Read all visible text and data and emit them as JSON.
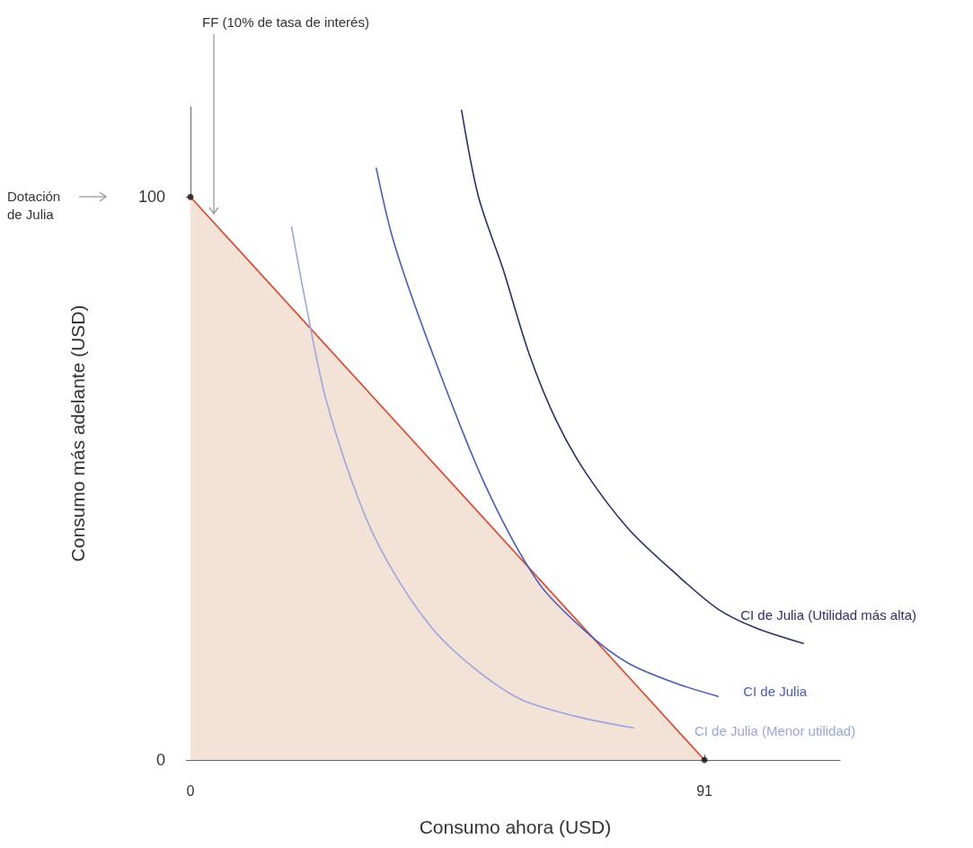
{
  "chart_data": {
    "type": "line",
    "xlabel": "Consumo ahora (USD)",
    "ylabel": "Consumo más adelante (USD)",
    "xlim": [
      0,
      115
    ],
    "ylim": [
      0,
      116
    ],
    "xticks": [
      0,
      91
    ],
    "yticks": [
      0,
      100
    ],
    "grid": false,
    "legend": false,
    "marker": "none",
    "line_style": "solid",
    "series": [
      {
        "type": "area",
        "color": "#e0452b",
        "x": [
          0,
          91
        ],
        "values": [
          100,
          0
        ]
      },
      {
        "name": "CI de Julia (Menor utilidad)",
        "color": "#9aa6e0",
        "x": [
          17.9,
          20.3,
          24,
          29.9,
          35,
          42.6,
          50,
          58.4,
          68,
          78.4
        ],
        "values": [
          94.7,
          81.7,
          64,
          45.9,
          35,
          23.6,
          16.5,
          10.8,
          7.8,
          5.7
        ]
      },
      {
        "name": "CI de Julia",
        "color": "#4a5bbf",
        "x": [
          32.9,
          36,
          42.6,
          52.1,
          61.6,
          70,
          77.5,
          86,
          93.4
        ],
        "values": [
          105.1,
          92,
          72.9,
          49,
          31.5,
          22.8,
          17.2,
          13.6,
          11.3
        ]
      },
      {
        "name": "CI de Julia (Utilidad más alta)",
        "color": "#2b2f6e",
        "x": [
          48,
          51,
          55.3,
          60,
          64.8,
          70,
          77.5,
          86,
          93.4,
          100,
          108.5
        ],
        "values": [
          115.4,
          100,
          87.3,
          72,
          60.2,
          51,
          41.1,
          33,
          26.8,
          23.5,
          20.7
        ]
      },
      {
        "type": "scatter",
        "color": "#111111",
        "x": [
          0,
          91
        ],
        "values": [
          100,
          0
        ],
        "marker": "circle"
      }
    ],
    "annotations": [
      "Dotación de Julia",
      "FF (10% de tasa de interés)"
    ]
  }
}
